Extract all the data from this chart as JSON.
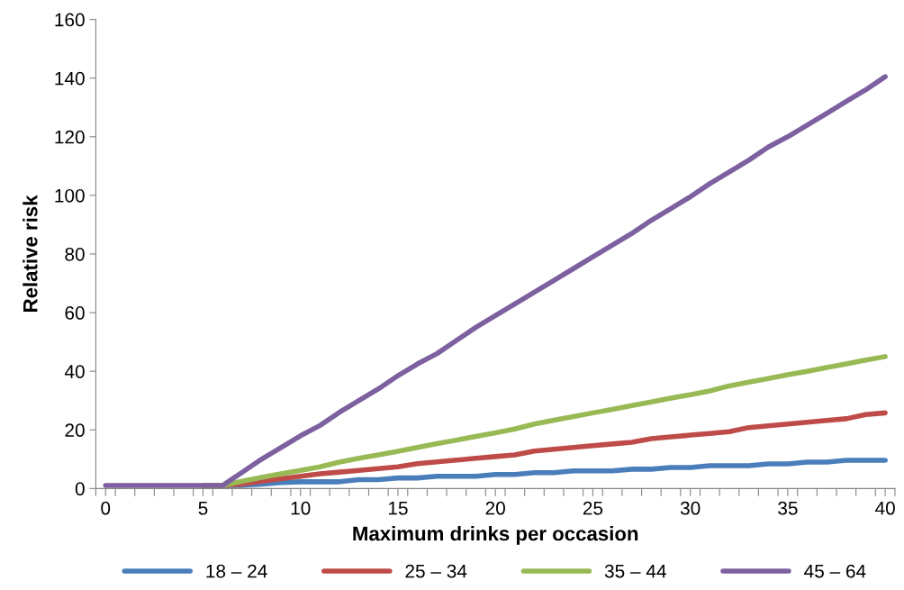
{
  "chart_data": {
    "type": "line",
    "xlabel": "Maximum drinks per occasion",
    "ylabel": "Relative risk",
    "x": [
      0,
      1,
      2,
      3,
      4,
      5,
      6,
      7,
      8,
      9,
      10,
      11,
      12,
      13,
      14,
      15,
      16,
      17,
      18,
      19,
      20,
      21,
      22,
      23,
      24,
      25,
      26,
      27,
      28,
      29,
      30,
      31,
      32,
      33,
      34,
      35,
      36,
      37,
      38,
      39,
      40
    ],
    "xlim": [
      -0.5,
      40.5
    ],
    "xticks": [
      0,
      5,
      10,
      15,
      20,
      25,
      30,
      35,
      40,
      {
        "value": -0.5,
        "label": null
      },
      {
        "value": 0.5,
        "label": null
      },
      {
        "value": 1.5,
        "label": null
      },
      {
        "value": 2.5,
        "label": null
      },
      {
        "value": 3.5,
        "label": null
      },
      {
        "value": 4.5,
        "label": null
      },
      {
        "value": 5.5,
        "label": null
      },
      {
        "value": 6.5,
        "label": null
      },
      {
        "value": 7.5,
        "label": null
      },
      {
        "value": 8.5,
        "label": null
      },
      {
        "value": 9.5,
        "label": null
      },
      {
        "value": 10.5,
        "label": null
      },
      {
        "value": 11.5,
        "label": null
      },
      {
        "value": 12.5,
        "label": null
      },
      {
        "value": 13.5,
        "label": null
      },
      {
        "value": 14.5,
        "label": null
      },
      {
        "value": 15.5,
        "label": null
      },
      {
        "value": 16.5,
        "label": null
      },
      {
        "value": 17.5,
        "label": null
      },
      {
        "value": 18.5,
        "label": null
      },
      {
        "value": 19.5,
        "label": null
      },
      {
        "value": 20.5,
        "label": null
      },
      {
        "value": 21.5,
        "label": null
      },
      {
        "value": 22.5,
        "label": null
      },
      {
        "value": 23.5,
        "label": null
      },
      {
        "value": 24.5,
        "label": null
      },
      {
        "value": 25.5,
        "label": null
      },
      {
        "value": 26.5,
        "label": null
      },
      {
        "value": 27.5,
        "label": null
      },
      {
        "value": 28.5,
        "label": null
      },
      {
        "value": 29.5,
        "label": null
      },
      {
        "value": 30.5,
        "label": null
      },
      {
        "value": 31.5,
        "label": null
      },
      {
        "value": 32.5,
        "label": null
      },
      {
        "value": 33.5,
        "label": null
      },
      {
        "value": 34.5,
        "label": null
      },
      {
        "value": 35.5,
        "label": null
      },
      {
        "value": 36.5,
        "label": null
      },
      {
        "value": 37.5,
        "label": null
      },
      {
        "value": 38.5,
        "label": null
      },
      {
        "value": 39.5,
        "label": null
      },
      {
        "value": 40.5,
        "label": null
      }
    ],
    "ylim": [
      0,
      160
    ],
    "yticks": [
      0,
      20,
      40,
      60,
      80,
      100,
      120,
      140,
      160
    ],
    "grid": false,
    "legend": "bottom",
    "marker": "none",
    "line_style": "solid",
    "series": [
      {
        "name": "18 – 24",
        "color": "#4a7ebb",
        "values": [
          null,
          null,
          null,
          null,
          null,
          1,
          1,
          1,
          1.5,
          2,
          2.3,
          2.3,
          2.3,
          3,
          3,
          3.6,
          3.6,
          4.2,
          4.2,
          4.2,
          4.8,
          4.8,
          5.4,
          5.4,
          6,
          6,
          6,
          6.6,
          6.6,
          7.2,
          7.2,
          7.8,
          7.8,
          7.8,
          8.4,
          8.4,
          9,
          9,
          9.6,
          9.6,
          9.6
        ]
      },
      {
        "name": "25 – 34",
        "color": "#be4b48",
        "values": [
          null,
          null,
          null,
          null,
          null,
          1,
          1,
          1.5,
          2.5,
          3.3,
          4.2,
          5,
          5.6,
          6.2,
          6.8,
          7.4,
          8.5,
          9.1,
          9.7,
          10.3,
          10.9,
          11.5,
          12.8,
          13.4,
          14,
          14.6,
          15.2,
          15.8,
          17,
          17.6,
          18.2,
          18.8,
          19.4,
          20.8,
          21.4,
          22,
          22.6,
          23.2,
          23.8,
          25.2,
          25.8
        ]
      },
      {
        "name": "35 – 44",
        "color": "#98b954",
        "values": [
          null,
          null,
          null,
          null,
          null,
          1,
          1,
          2.5,
          3.8,
          5,
          6.2,
          7.4,
          9,
          10.3,
          11.5,
          12.7,
          14,
          15.3,
          16.5,
          17.8,
          19,
          20.3,
          22,
          23.3,
          24.5,
          25.8,
          27,
          28.3,
          29.5,
          30.8,
          32,
          33.3,
          35,
          36.3,
          37.5,
          38.8,
          40,
          41.3,
          42.5,
          43.8,
          45
        ]
      },
      {
        "name": "45 – 64",
        "color": "#7d60a0",
        "values": [
          1,
          1,
          1,
          1,
          1,
          1,
          1,
          5.5,
          10,
          14,
          18,
          21.5,
          26,
          30,
          34,
          38.5,
          42.5,
          46,
          50.5,
          55,
          59,
          63,
          67,
          71,
          75,
          79,
          83,
          87,
          91.5,
          95.5,
          99.5,
          104,
          108,
          112,
          116.5,
          120,
          124,
          128,
          132,
          136,
          140.5
        ]
      }
    ]
  }
}
